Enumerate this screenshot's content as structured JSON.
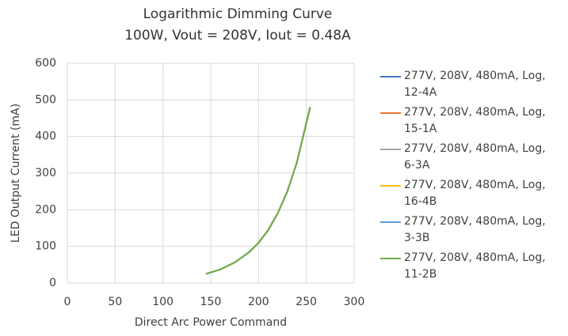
{
  "chart_data": {
    "type": "line",
    "title": "Logarithmic Dimming Curve",
    "subtitle": "100W, Vout = 208V, Iout = 0.48A",
    "x_label": "Direct Arc Power Command",
    "y_label": "LED Output Current (mA)",
    "x": [
      145,
      160,
      175,
      190,
      200,
      210,
      220,
      230,
      240,
      254
    ],
    "series": [
      {
        "name": "277V, 208V, 480mA, Log, 12-4A",
        "color": "#4472c4",
        "values": [
          25,
          37,
          56,
          84,
          110,
          144,
          190,
          249,
          328,
          480
        ]
      },
      {
        "name": "277V, 208V, 480mA, Log, 15-1A",
        "color": "#ed7d31",
        "values": [
          25,
          37,
          56,
          84,
          110,
          144,
          190,
          249,
          328,
          480
        ]
      },
      {
        "name": "277V, 208V, 480mA, Log, 6-3A",
        "color": "#a5a5a5",
        "values": [
          25,
          37,
          56,
          84,
          110,
          144,
          190,
          249,
          328,
          480
        ]
      },
      {
        "name": "277V, 208V, 480mA, Log, 16-4B",
        "color": "#ffc000",
        "values": [
          25,
          37,
          56,
          84,
          110,
          144,
          190,
          249,
          328,
          480
        ]
      },
      {
        "name": "277V, 208V, 480mA, Log, 3-3B",
        "color": "#5b9bd5",
        "values": [
          25,
          37,
          56,
          84,
          110,
          144,
          190,
          249,
          328,
          480
        ]
      },
      {
        "name": "277V, 208V, 480mA, Log, 11-2B",
        "color": "#70ad47",
        "values": [
          25,
          37,
          56,
          84,
          110,
          144,
          190,
          249,
          328,
          480
        ]
      }
    ],
    "xlim": [
      0,
      300
    ],
    "xticks": [
      0,
      50,
      100,
      150,
      200,
      250,
      300
    ],
    "ylim": [
      0,
      600
    ],
    "yticks": [
      0,
      100,
      200,
      300,
      400,
      500,
      600
    ],
    "grid": true
  }
}
